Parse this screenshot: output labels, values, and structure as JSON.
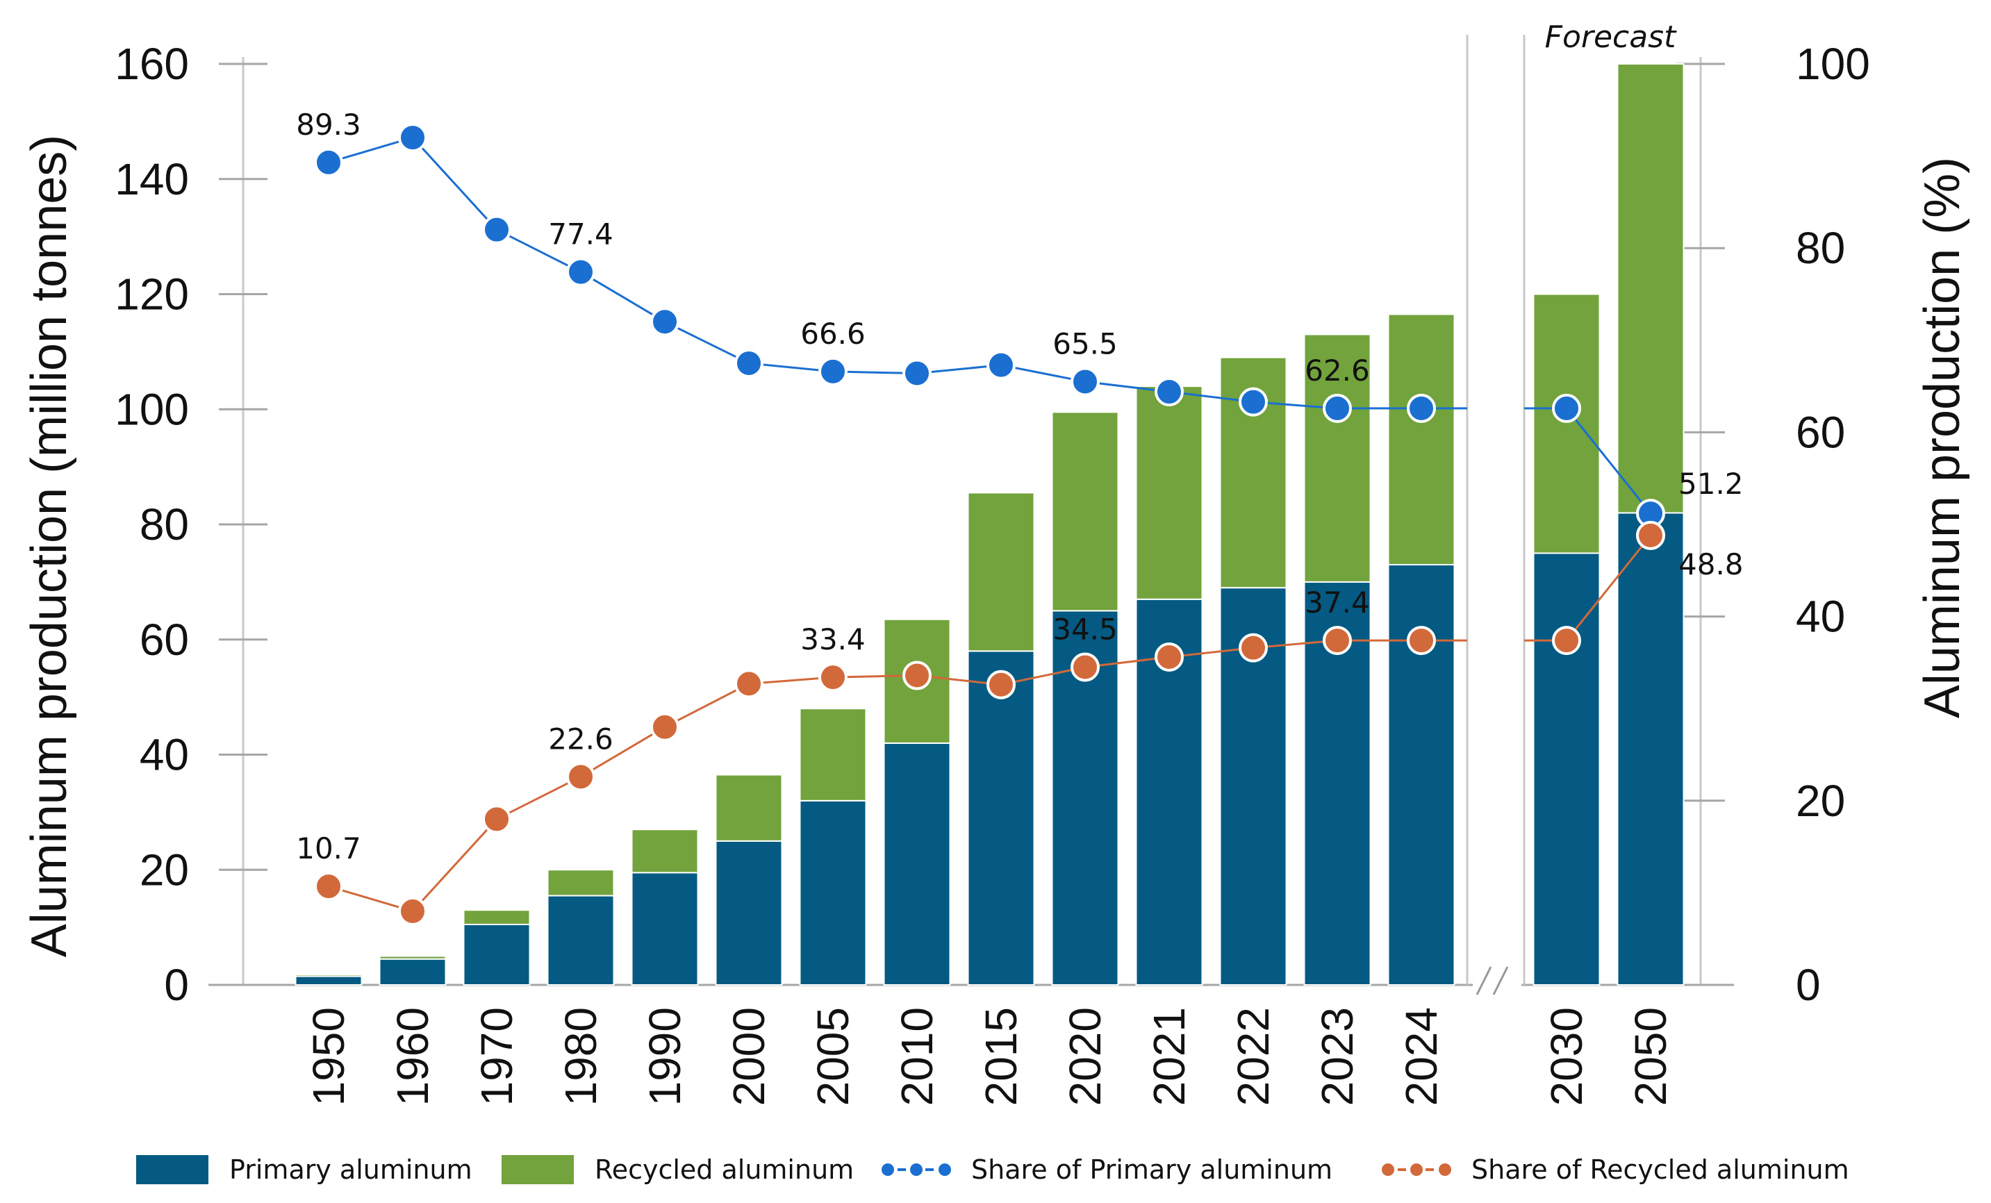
{
  "chart_data": {
    "type": "bar",
    "stacked": true,
    "title": "",
    "categories": [
      "1950",
      "1960",
      "1970",
      "1980",
      "1990",
      "2000",
      "2005",
      "2010",
      "2015",
      "2020",
      "2021",
      "2022",
      "2023",
      "2024",
      "2030",
      "2050"
    ],
    "forecast_categories": [
      "2030",
      "2050"
    ],
    "forecast_label": "Forecast",
    "ylabel_left": "Aluminum production (million tonnes)",
    "ylabel_right": "Aluminum production (%)",
    "ylim_left": [
      0,
      160
    ],
    "ylim_right": [
      0,
      100
    ],
    "yticks_left": [
      "0",
      "20",
      "40",
      "60",
      "80",
      "100",
      "120",
      "140",
      "160"
    ],
    "yticks_right": [
      "0",
      "20",
      "40",
      "60",
      "80",
      "100"
    ],
    "series": [
      {
        "name": "Primary aluminum",
        "kind": "bar",
        "axis": "left",
        "color": "#045a82",
        "values": [
          1.5,
          4.5,
          10.5,
          15.5,
          19.5,
          25,
          32,
          42,
          58,
          65,
          67,
          69,
          70,
          73,
          75,
          82
        ]
      },
      {
        "name": "Recycled aluminum",
        "kind": "bar",
        "axis": "left",
        "color": "#72a33c",
        "values": [
          0.3,
          0.5,
          2.5,
          4.5,
          7.5,
          11.5,
          16,
          21.5,
          27.5,
          34.5,
          37,
          40,
          43,
          43.5,
          45,
          78
        ]
      },
      {
        "name": "Share of Primary aluminum",
        "kind": "line",
        "axis": "right",
        "color": "#1a6fd1",
        "values": [
          89.3,
          92,
          82,
          77.4,
          72,
          67.5,
          66.6,
          66.4,
          67.3,
          65.5,
          64.4,
          63.3,
          62.6,
          62.6,
          62.6,
          51.2
        ]
      },
      {
        "name": "Share of Recycled aluminum",
        "kind": "line",
        "axis": "right",
        "color": "#d2693a",
        "values": [
          10.7,
          8,
          18,
          22.6,
          28,
          32.7,
          33.4,
          33.6,
          32.6,
          34.5,
          35.6,
          36.6,
          37.4,
          37.4,
          37.4,
          48.8
        ]
      }
    ],
    "annotations": [
      {
        "series": 2,
        "index": 0,
        "text": "89.3"
      },
      {
        "series": 2,
        "index": 3,
        "text": "77.4"
      },
      {
        "series": 2,
        "index": 6,
        "text": "66.6"
      },
      {
        "series": 2,
        "index": 9,
        "text": "65.5"
      },
      {
        "series": 2,
        "index": 12,
        "text": "62.6"
      },
      {
        "series": 2,
        "index": 15,
        "text": "51.2"
      },
      {
        "series": 3,
        "index": 0,
        "text": "10.7"
      },
      {
        "series": 3,
        "index": 3,
        "text": "22.6"
      },
      {
        "series": 3,
        "index": 6,
        "text": "33.4"
      },
      {
        "series": 3,
        "index": 9,
        "text": "34.5"
      },
      {
        "series": 3,
        "index": 12,
        "text": "37.4"
      },
      {
        "series": 3,
        "index": 15,
        "text": "48.8"
      }
    ],
    "legend": [
      "Primary aluminum",
      "Recycled aluminum",
      "Share of Primary aluminum",
      "Share of Recycled aluminum"
    ],
    "legend_position": "bottom"
  }
}
